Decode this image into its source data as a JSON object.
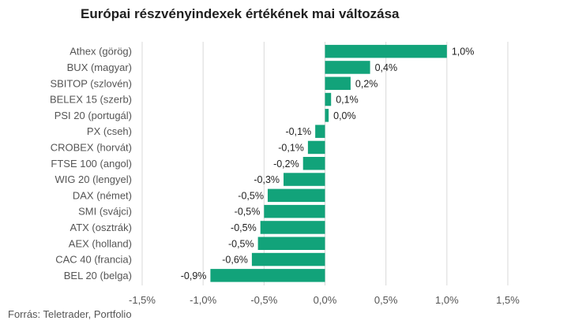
{
  "title": "Európai részvényindexek értékének mai változása",
  "source": "Forrás: Teletrader, Portfolio",
  "colors": {
    "bar": "#12a37a",
    "grid": "#d9d9d9",
    "text": "#555555"
  },
  "chart_data": {
    "type": "bar",
    "orientation": "horizontal",
    "title": "Európai részvényindexek értékének mai változása",
    "xlabel": "",
    "ylabel": "",
    "xlim": [
      -1.5,
      1.5
    ],
    "grid": true,
    "categories": [
      "Athex (görög)",
      "BUX (magyar)",
      "SBITOP (szlovén)",
      "BELEX 15 (szerb)",
      "PSI 20 (portugál)",
      "PX (cseh)",
      "CROBEX (horvát)",
      "FTSE 100 (angol)",
      "WIG 20 (lengyel)",
      "DAX (német)",
      "SMI (svájci)",
      "ATX (osztrák)",
      "AEX (holland)",
      "CAC 40 (francia)",
      "BEL 20 (belga)"
    ],
    "values": [
      1.0,
      0.37,
      0.21,
      0.05,
      0.03,
      -0.08,
      -0.14,
      -0.18,
      -0.34,
      -0.47,
      -0.5,
      -0.53,
      -0.55,
      -0.6,
      -0.94
    ],
    "value_labels": [
      "1,0%",
      "0,4%",
      "0,2%",
      "0,1%",
      "0,0%",
      "-0,1%",
      "-0,1%",
      "-0,2%",
      "-0,3%",
      "-0,5%",
      "-0,5%",
      "-0,5%",
      "-0,5%",
      "-0,6%",
      "-0,9%"
    ],
    "ticks": [
      -1.5,
      -1.0,
      -0.5,
      0.0,
      0.5,
      1.0,
      1.5
    ],
    "tick_labels": [
      "-1,5%",
      "-1,0%",
      "-0,5%",
      "0,0%",
      "0,5%",
      "1,0%",
      "1,5%"
    ]
  }
}
